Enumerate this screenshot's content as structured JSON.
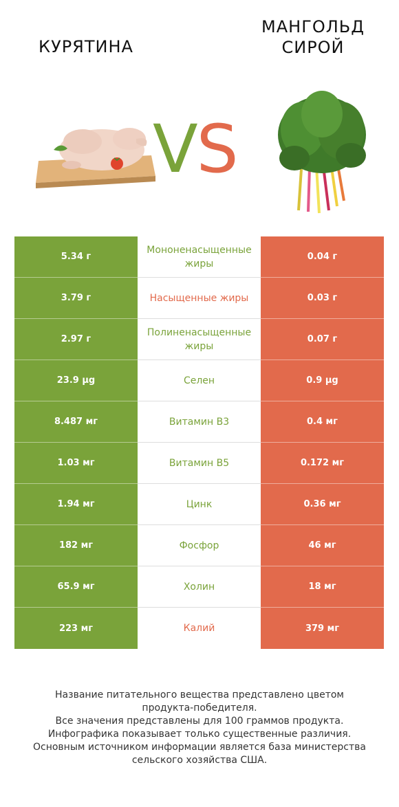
{
  "header": {
    "left_title": "КУРЯТИНА",
    "right_title": "МАНГОЛЬД\nСИРОЙ",
    "vs_v": "V",
    "vs_s": "S"
  },
  "colors": {
    "winner_left": "#7aa33a",
    "winner_right": "#e26a4c"
  },
  "rows": [
    {
      "left": "5.34 г",
      "name": "Мононенасыщенные жиры",
      "right": "0.04 г",
      "winner": "left"
    },
    {
      "left": "3.79 г",
      "name": "Насыщенные жиры",
      "right": "0.03 г",
      "winner": "right"
    },
    {
      "left": "2.97 г",
      "name": "Полиненасыщенные жиры",
      "right": "0.07 г",
      "winner": "left"
    },
    {
      "left": "23.9 µg",
      "name": "Селен",
      "right": "0.9 µg",
      "winner": "left"
    },
    {
      "left": "8.487 мг",
      "name": "Витамин B3",
      "right": "0.4 мг",
      "winner": "left"
    },
    {
      "left": "1.03 мг",
      "name": "Витамин B5",
      "right": "0.172 мг",
      "winner": "left"
    },
    {
      "left": "1.94 мг",
      "name": "Цинк",
      "right": "0.36 мг",
      "winner": "left"
    },
    {
      "left": "182 мг",
      "name": "Фосфор",
      "right": "46 мг",
      "winner": "left"
    },
    {
      "left": "65.9 мг",
      "name": "Холин",
      "right": "18 мг",
      "winner": "left"
    },
    {
      "left": "223 мг",
      "name": "Калий",
      "right": "379 мг",
      "winner": "right"
    }
  ],
  "footer": [
    "Название питательного вещества представлено цветом",
    "продукта-победителя.",
    "Все значения представлены для 100 граммов продукта.",
    "Инфографика показывает только существенные различия.",
    "Основным источником информации является база министерства",
    "сельского хозяйства США."
  ]
}
